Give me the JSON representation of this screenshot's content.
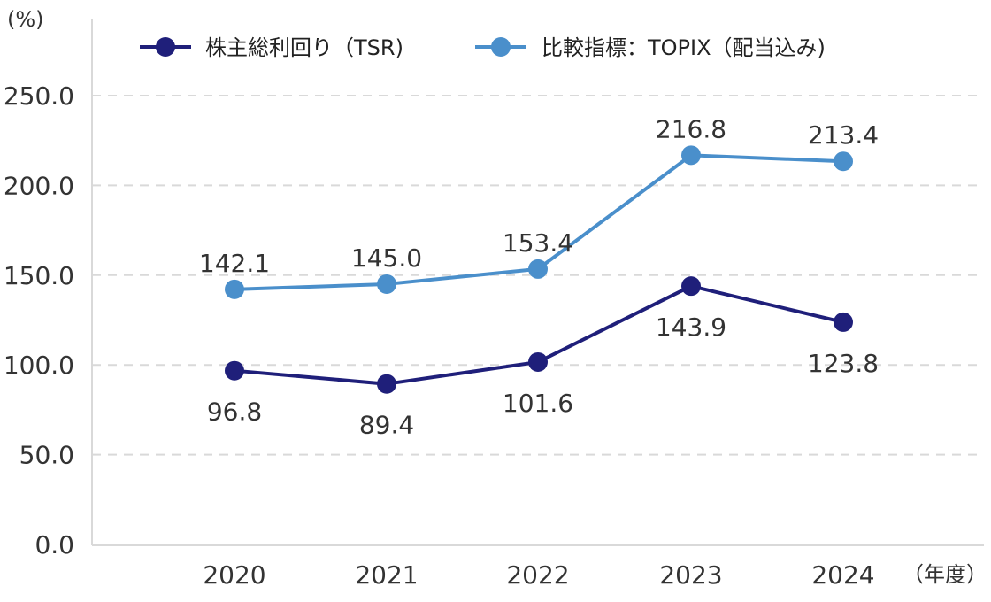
{
  "chart_data": {
    "type": "line",
    "y_unit": "(%)",
    "x_unit": "（年度）",
    "categories": [
      "2020",
      "2021",
      "2022",
      "2023",
      "2024"
    ],
    "ylim": [
      0,
      250
    ],
    "yticks": [
      "0.0",
      "50.0",
      "100.0",
      "150.0",
      "200.0",
      "250.0"
    ],
    "ytick_values": [
      0,
      50,
      100,
      150,
      200,
      250
    ],
    "grid": true,
    "legend_position": "top",
    "series": [
      {
        "name": "株主総利回り（TSR)",
        "color": "#1f1f7a",
        "values": [
          96.8,
          89.4,
          101.6,
          143.9,
          123.8
        ],
        "labels": [
          "96.8",
          "89.4",
          "101.6",
          "143.9",
          "123.8"
        ],
        "label_position": "below"
      },
      {
        "name": "比較指標：TOPIX（配当込み)",
        "color": "#4a8fcb",
        "values": [
          142.1,
          145.0,
          153.4,
          216.8,
          213.4
        ],
        "labels": [
          "142.1",
          "145.0",
          "153.4",
          "216.8",
          "213.4"
        ],
        "label_position": "above"
      }
    ]
  }
}
